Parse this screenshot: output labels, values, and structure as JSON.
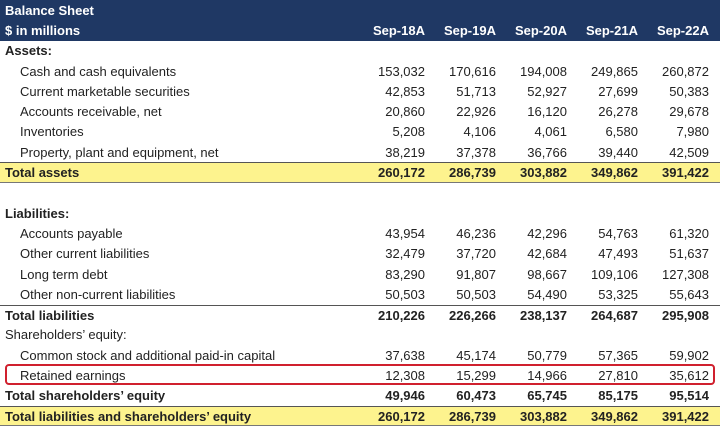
{
  "title": "Balance Sheet",
  "units": "$ in millions",
  "periods": [
    "Sep-18A",
    "Sep-19A",
    "Sep-20A",
    "Sep-21A",
    "Sep-22A"
  ],
  "highlight_color": "#d0202e",
  "rows": [
    {
      "label": "Assets:",
      "values": [],
      "style": "section"
    },
    {
      "label": "Cash and cash equivalents",
      "values": [
        "153,032",
        "170,616",
        "194,008",
        "249,865",
        "260,872"
      ],
      "style": "item"
    },
    {
      "label": "Current marketable securities",
      "values": [
        "42,853",
        "51,713",
        "52,927",
        "27,699",
        "50,383"
      ],
      "style": "item"
    },
    {
      "label": "Accounts receivable, net",
      "values": [
        "20,860",
        "22,926",
        "16,120",
        "26,278",
        "29,678"
      ],
      "style": "item"
    },
    {
      "label": "Inventories",
      "values": [
        "5,208",
        "4,106",
        "4,061",
        "6,580",
        "7,980"
      ],
      "style": "item"
    },
    {
      "label": "Property, plant and equipment, net",
      "values": [
        "38,219",
        "37,378",
        "36,766",
        "39,440",
        "42,509"
      ],
      "style": "item"
    },
    {
      "label": "Total assets",
      "values": [
        "260,172",
        "286,739",
        "303,882",
        "349,862",
        "391,422"
      ],
      "style": "grand"
    },
    {
      "label": "",
      "values": [],
      "style": "blank"
    },
    {
      "label": "Liabilities:",
      "values": [],
      "style": "section"
    },
    {
      "label": "Accounts payable",
      "values": [
        "43,954",
        "46,236",
        "42,296",
        "54,763",
        "61,320"
      ],
      "style": "item"
    },
    {
      "label": "Other current liabilities",
      "values": [
        "32,479",
        "37,720",
        "42,684",
        "47,493",
        "51,637"
      ],
      "style": "item"
    },
    {
      "label": "Long term debt",
      "values": [
        "83,290",
        "91,807",
        "98,667",
        "109,106",
        "127,308"
      ],
      "style": "item"
    },
    {
      "label": "Other non-current liabilities",
      "values": [
        "50,503",
        "50,503",
        "54,490",
        "53,325",
        "55,643"
      ],
      "style": "item"
    },
    {
      "label": "Total liabilities",
      "values": [
        "210,226",
        "226,266",
        "238,137",
        "264,687",
        "295,908"
      ],
      "style": "total"
    },
    {
      "label": "Shareholders’ equity:",
      "values": [],
      "style": "subsection"
    },
    {
      "label": "Common stock and additional paid-in capital",
      "values": [
        "37,638",
        "45,174",
        "50,779",
        "57,365",
        "59,902"
      ],
      "style": "item"
    },
    {
      "label": "Retained earnings",
      "values": [
        "12,308",
        "15,299",
        "14,966",
        "27,810",
        "35,612"
      ],
      "style": "item",
      "highlighted": true
    },
    {
      "label": "Total shareholders’ equity",
      "values": [
        "49,946",
        "60,473",
        "65,745",
        "85,175",
        "95,514"
      ],
      "style": "total2"
    },
    {
      "label": "Total liabilities and shareholders’ equity",
      "values": [
        "260,172",
        "286,739",
        "303,882",
        "349,862",
        "391,422"
      ],
      "style": "grand"
    }
  ]
}
